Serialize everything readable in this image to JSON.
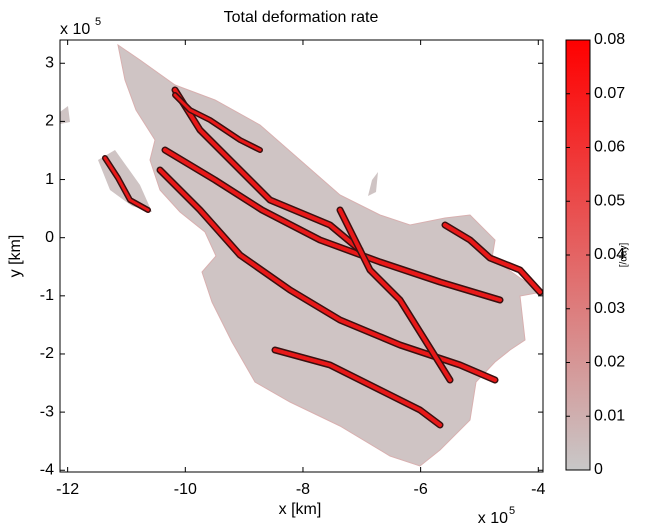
{
  "chart_data": {
    "type": "mesh",
    "title": "Total deformation rate",
    "xlabel": "x [km]",
    "ylabel": "y [km]",
    "x_multiplier": "x 10",
    "x_exponent": "5",
    "y_multiplier": "x 10",
    "y_exponent": "5",
    "xlim": [
      -12.13,
      -3.92
    ],
    "xticks": [
      -12,
      -10,
      -8,
      -6,
      -4
    ],
    "ylim": [
      -4.03,
      3.4
    ],
    "yticks": [
      -4,
      -3,
      -2,
      -1,
      0,
      1,
      2,
      3
    ],
    "colorbar": {
      "label": "[/day]",
      "lim": [
        0,
        0.08
      ],
      "ticks": [
        0,
        0.01,
        0.02,
        0.03,
        0.04,
        0.05,
        0.06,
        0.07,
        0.08
      ],
      "colors": [
        "#c8c8c8",
        "#ff0000"
      ]
    }
  }
}
